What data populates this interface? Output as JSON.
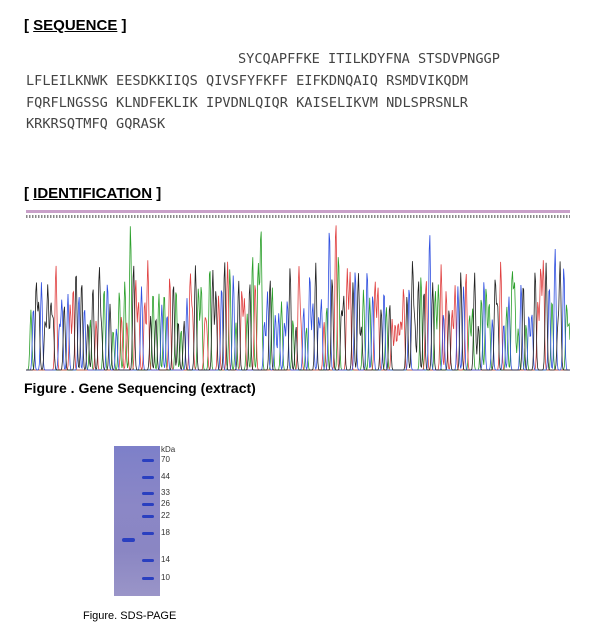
{
  "sequence": {
    "heading": {
      "open": "[",
      "text": "SEQUENCE",
      "close": "]"
    },
    "lines": [
      "SYCQAPFFKE ITILKDYFNA STSDVPNGGP",
      "LFLEILKNWK EESDKKIIQS QIVSFYFKFF EIFKDNQAIQ RSMDVIKQDM",
      "FQRFLNGSSG KLNDFEKLIK IPVDNLQIQR KAISELIKVM NDLSPRSNLR",
      "KRKRSQTMFQ GQRASK"
    ]
  },
  "identification": {
    "heading": {
      "open": "[",
      "text": "IDENTIFICATION",
      "close": "]"
    },
    "caption": "Figure . Gene Sequencing (extract)"
  },
  "sds_page": {
    "unit": "kDa",
    "markers": [
      "70",
      "44",
      "33",
      "26",
      "22",
      "18",
      "14",
      "10"
    ],
    "caption": "Figure. SDS-PAGE"
  }
}
